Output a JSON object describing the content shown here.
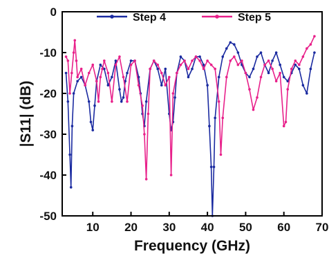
{
  "chart_data": {
    "type": "line",
    "xlabel": "Frequency (GHz)",
    "ylabel": "|S11| (dB)",
    "xlim": [
      2,
      70
    ],
    "ylim": [
      -50,
      0
    ],
    "x_ticks": [
      10,
      20,
      30,
      40,
      50,
      60,
      70
    ],
    "y_ticks": [
      0,
      -10,
      -20,
      -30,
      -40,
      -50
    ],
    "legend": "top",
    "grid": false,
    "series": [
      {
        "name": "Step 4",
        "color": "#1a2aa0",
        "x": [
          3,
          3.5,
          4,
          4.3,
          4.6,
          5,
          6,
          7,
          8,
          9,
          9.5,
          10,
          10.5,
          11,
          12,
          13,
          14,
          15,
          16,
          17,
          17.5,
          18,
          18.5,
          19,
          20,
          21,
          22,
          22.5,
          23,
          23.5,
          24,
          25,
          26,
          27,
          28,
          29,
          30,
          30.5,
          31,
          31.5,
          32,
          33,
          34,
          35,
          36,
          37,
          38,
          39,
          40,
          40.5,
          41,
          41.3,
          41.7,
          42,
          43,
          44,
          45,
          46,
          47,
          48,
          49,
          50,
          51,
          52,
          53,
          54,
          55,
          56,
          57,
          58,
          59,
          60,
          61,
          62,
          63,
          64,
          65,
          66,
          67,
          68
        ],
        "y": [
          -15,
          -22,
          -35,
          -43,
          -28,
          -20,
          -17,
          -16,
          -18,
          -22,
          -27,
          -29,
          -23,
          -17,
          -13,
          -14,
          -18,
          -16,
          -12,
          -19,
          -22,
          -21,
          -17,
          -15,
          -12,
          -12,
          -16,
          -20,
          -25,
          -28,
          -22,
          -14,
          -12,
          -14,
          -18,
          -14,
          -25,
          -29,
          -27,
          -21,
          -15,
          -11,
          -12,
          -16,
          -14,
          -11,
          -11,
          -13,
          -18,
          -28,
          -38,
          -50,
          -38,
          -26,
          -16,
          -11,
          -9,
          -7.5,
          -8,
          -10,
          -13,
          -15,
          -16,
          -14,
          -11,
          -10,
          -13,
          -15,
          -12,
          -10,
          -13,
          -16,
          -17,
          -15,
          -13,
          -14,
          -18,
          -20,
          -14,
          -10
        ]
      },
      {
        "name": "Step 5",
        "color": "#e8208a",
        "x": [
          3,
          3.5,
          4,
          4.5,
          5,
          5.3,
          5.7,
          6,
          7,
          8,
          9,
          10,
          11,
          11.5,
          12,
          12.5,
          13,
          14,
          15,
          16,
          17,
          18,
          19,
          20,
          21,
          22,
          23,
          23.5,
          24,
          24.5,
          25,
          26,
          27,
          28,
          29,
          30,
          30.5,
          31,
          32,
          33,
          34,
          35,
          36,
          37,
          38,
          39,
          40,
          41,
          42,
          43,
          43.5,
          44,
          45,
          46,
          47,
          48,
          49,
          50,
          51,
          52,
          53,
          54,
          55,
          56,
          57,
          58,
          59,
          60,
          60.5,
          61,
          62,
          63,
          64,
          65,
          66,
          67,
          68
        ],
        "y": [
          -11,
          -12,
          -20,
          -15,
          -10,
          -7,
          -12,
          -16,
          -14,
          -18,
          -15,
          -13,
          -17,
          -22,
          -16,
          -14,
          -12,
          -15,
          -22,
          -13,
          -11,
          -16,
          -22,
          -13,
          -12,
          -18,
          -23,
          -30,
          -41,
          -25,
          -14,
          -12,
          -13,
          -15,
          -18,
          -16,
          -40,
          -20,
          -15,
          -13,
          -12,
          -14,
          -12,
          -11,
          -12,
          -14,
          -12,
          -13,
          -14,
          -22,
          -35,
          -26,
          -16,
          -12,
          -11,
          -13,
          -12,
          -15,
          -19,
          -24,
          -21,
          -16,
          -13,
          -12,
          -14,
          -17,
          -15,
          -28,
          -27,
          -19,
          -14,
          -12,
          -13,
          -11,
          -9,
          -8,
          -6
        ]
      }
    ]
  }
}
